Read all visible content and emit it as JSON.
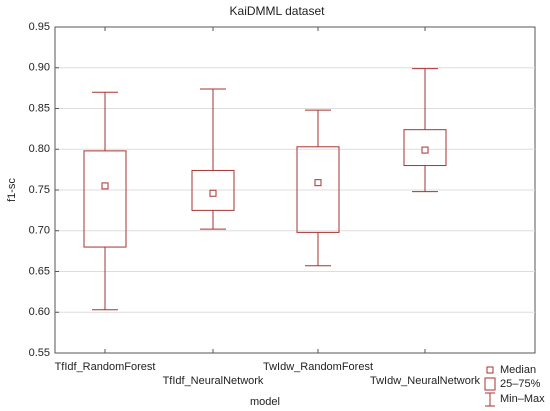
{
  "chart_data": {
    "type": "box",
    "title": "KaiDMML dataset",
    "x_label": "model",
    "y_label": "f1-sc",
    "categories": [
      "TfIdf_RandomForest",
      "TfIdf_NeuralNetwork",
      "TwIdw_RandomForest",
      "TwIdw_NeuralNetwork"
    ],
    "min": [
      0.603,
      0.702,
      0.657,
      0.748
    ],
    "q1": [
      0.68,
      0.725,
      0.698,
      0.78
    ],
    "median": [
      0.755,
      0.746,
      0.759,
      0.799
    ],
    "q3": [
      0.798,
      0.774,
      0.803,
      0.824
    ],
    "max": [
      0.87,
      0.874,
      0.848,
      0.899
    ],
    "color": "#a83232",
    "ylim": [
      0.55,
      0.95
    ],
    "yticks": [
      0.55,
      {
        "value": 0.6,
        "label": "0.60"
      },
      0.65,
      {
        "value": 0.7,
        "label": "0.70"
      },
      0.75,
      {
        "value": 0.8,
        "label": "0.80"
      },
      0.85,
      {
        "value": 0.9,
        "label": "0.90"
      },
      0.95
    ],
    "grid": true,
    "legend": [
      "Median",
      "25–75%",
      "Min–Max"
    ]
  }
}
